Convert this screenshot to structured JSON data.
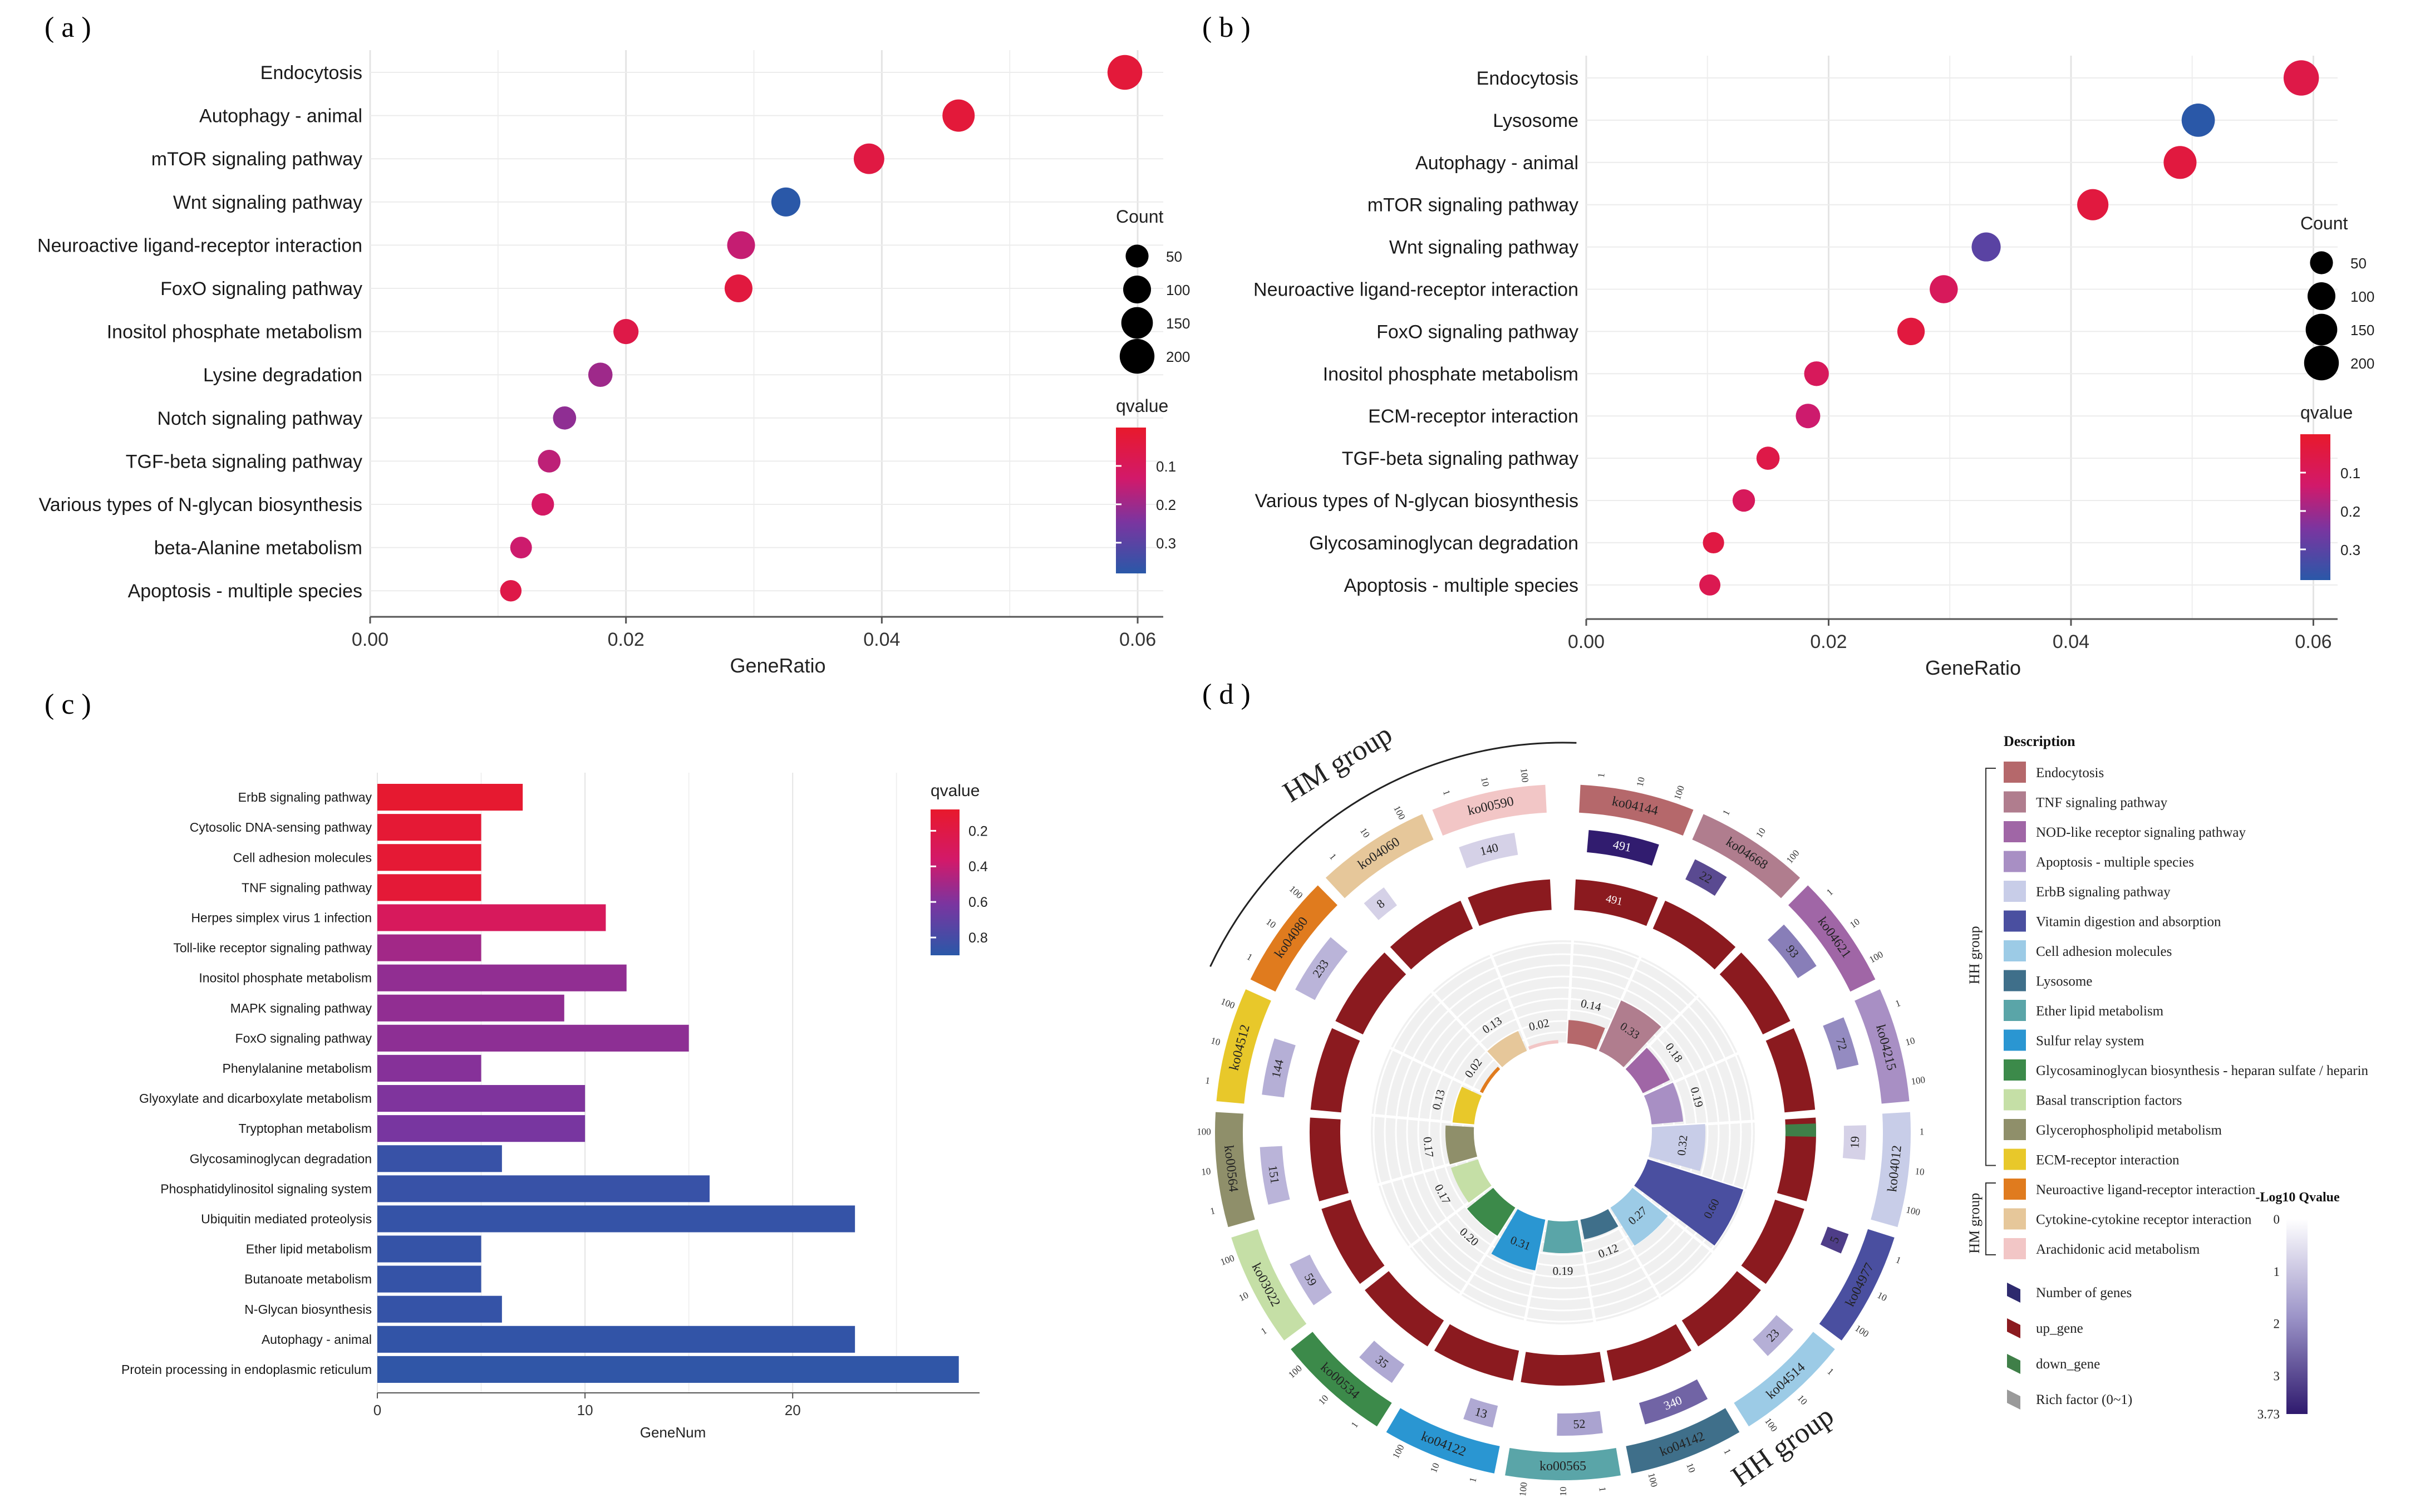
{
  "panels": {
    "a_label": "( a )",
    "b_label": "( b )",
    "c_label": "( c )",
    "d_label": "( d )"
  },
  "colors": {
    "red": "#e8192c",
    "blue": "#2a58a8",
    "dark_red": "#8b1a1f",
    "grid": "#ebebeb"
  },
  "chart_data": [
    {
      "id": "a",
      "type": "scatter",
      "title": "",
      "xlabel": "GeneRatio",
      "ylabel": "",
      "xlim": [
        0.0,
        0.062
      ],
      "xticks": [
        "0.00",
        "0.02",
        "0.04",
        "0.06"
      ],
      "xtick_values": [
        0.0,
        0.02,
        0.04,
        0.06
      ],
      "legend_size_title": "Count",
      "legend_size_labels": [
        "50",
        "100",
        "150",
        "200"
      ],
      "legend_size_values": [
        50,
        100,
        150,
        200
      ],
      "legend_color_title": "qvalue",
      "legend_color_labels": [
        "0.1",
        "0.2",
        "0.3"
      ],
      "legend_color_values": [
        0.1,
        0.2,
        0.3
      ],
      "color_range": [
        0.0,
        0.38
      ],
      "points": [
        {
          "term": "Endocytosis",
          "x": 0.059,
          "q": 0.03,
          "count": 200
        },
        {
          "term": "Autophagy - animal",
          "x": 0.046,
          "q": 0.03,
          "count": 160
        },
        {
          "term": "mTOR signaling pathway",
          "x": 0.039,
          "q": 0.05,
          "count": 135
        },
        {
          "term": "Wnt signaling pathway",
          "x": 0.0325,
          "q": 0.38,
          "count": 115
        },
        {
          "term": "Neuroactive ligand-receptor interaction",
          "x": 0.029,
          "q": 0.15,
          "count": 100
        },
        {
          "term": "FoxO signaling pathway",
          "x": 0.0288,
          "q": 0.04,
          "count": 100
        },
        {
          "term": "Inositol phosphate metabolism",
          "x": 0.02,
          "q": 0.06,
          "count": 70
        },
        {
          "term": "Lysine degradation",
          "x": 0.018,
          "q": 0.2,
          "count": 62
        },
        {
          "term": "Notch signaling pathway",
          "x": 0.0152,
          "q": 0.22,
          "count": 52
        },
        {
          "term": "TGF-beta signaling pathway",
          "x": 0.014,
          "q": 0.16,
          "count": 48
        },
        {
          "term": "Various types of N-glycan biosynthesis",
          "x": 0.0135,
          "q": 0.12,
          "count": 46
        },
        {
          "term": "beta-Alanine metabolism",
          "x": 0.0118,
          "q": 0.14,
          "count": 40
        },
        {
          "term": "Apoptosis - multiple species",
          "x": 0.011,
          "q": 0.06,
          "count": 38
        }
      ]
    },
    {
      "id": "b",
      "type": "scatter",
      "title": "",
      "xlabel": "GeneRatio",
      "ylabel": "",
      "xlim": [
        0.0,
        0.062
      ],
      "xticks": [
        "0.00",
        "0.02",
        "0.04",
        "0.06"
      ],
      "xtick_values": [
        0.0,
        0.02,
        0.04,
        0.06
      ],
      "legend_size_title": "Count",
      "legend_size_labels": [
        "50",
        "100",
        "150",
        "200"
      ],
      "legend_size_values": [
        50,
        100,
        150,
        200
      ],
      "legend_color_title": "qvalue",
      "legend_color_labels": [
        "0.1",
        "0.2",
        "0.3"
      ],
      "legend_color_values": [
        0.1,
        0.2,
        0.3
      ],
      "color_range": [
        0.0,
        0.38
      ],
      "points": [
        {
          "term": "Endocytosis",
          "x": 0.059,
          "q": 0.06,
          "count": 210
        },
        {
          "term": "Lysosome",
          "x": 0.0505,
          "q": 0.38,
          "count": 175
        },
        {
          "term": "Autophagy - animal",
          "x": 0.049,
          "q": 0.04,
          "count": 170
        },
        {
          "term": "mTOR signaling pathway",
          "x": 0.0418,
          "q": 0.04,
          "count": 145
        },
        {
          "term": "Wnt signaling pathway",
          "x": 0.033,
          "q": 0.3,
          "count": 115
        },
        {
          "term": "Neuroactive ligand-receptor interaction",
          "x": 0.0295,
          "q": 0.1,
          "count": 103
        },
        {
          "term": "FoxO signaling pathway",
          "x": 0.0268,
          "q": 0.04,
          "count": 95
        },
        {
          "term": "Inositol phosphate metabolism",
          "x": 0.019,
          "q": 0.1,
          "count": 66
        },
        {
          "term": "ECM-receptor interaction",
          "x": 0.0183,
          "q": 0.14,
          "count": 64
        },
        {
          "term": "TGF-beta signaling pathway",
          "x": 0.015,
          "q": 0.06,
          "count": 52
        },
        {
          "term": "Various types of N-glycan biosynthesis",
          "x": 0.013,
          "q": 0.1,
          "count": 46
        },
        {
          "term": "Glycosaminoglycan degradation",
          "x": 0.0105,
          "q": 0.05,
          "count": 37
        },
        {
          "term": "Apoptosis - multiple species",
          "x": 0.0102,
          "q": 0.08,
          "count": 36
        }
      ]
    },
    {
      "id": "c",
      "type": "bar",
      "orientation": "horizontal",
      "title": "",
      "xlabel": "GeneNum",
      "ylabel": "",
      "xlim": [
        0,
        29
      ],
      "xticks": [
        "0",
        "10",
        "20"
      ],
      "xtick_values": [
        0,
        10,
        20
      ],
      "legend_color_title": "qvalue",
      "legend_color_labels": [
        "0.2",
        "0.4",
        "0.6",
        "0.8"
      ],
      "legend_color_values": [
        0.2,
        0.4,
        0.6,
        0.8
      ],
      "color_range": [
        0.08,
        0.9
      ],
      "categories": [
        "ErbB signaling pathway",
        "Cytosolic DNA-sensing pathway",
        "Cell adhesion molecules",
        "TNF signaling pathway",
        "Herpes simplex virus 1 infection",
        "Toll-like receptor signaling pathway",
        "Inositol phosphate metabolism",
        "MAPK signaling pathway",
        "FoxO signaling pathway",
        "Phenylalanine metabolism",
        "Glyoxylate and dicarboxylate metabolism",
        "Tryptophan metabolism",
        "Glycosaminoglycan degradation",
        "Phosphatidylinositol signaling system",
        "Ubiquitin mediated proteolysis",
        "Ether lipid metabolism",
        "Butanoate metabolism",
        "N-Glycan biosynthesis",
        "Autophagy - animal",
        "Protein processing in endoplasmic reticulum"
      ],
      "values": [
        7,
        5,
        5,
        5,
        11,
        5,
        12,
        9,
        15,
        5,
        10,
        10,
        6,
        16,
        23,
        5,
        5,
        6,
        23,
        28
      ],
      "qvalues": [
        0.1,
        0.12,
        0.12,
        0.13,
        0.3,
        0.5,
        0.55,
        0.55,
        0.56,
        0.58,
        0.6,
        0.62,
        0.85,
        0.85,
        0.86,
        0.86,
        0.86,
        0.86,
        0.87,
        0.88
      ]
    },
    {
      "id": "d",
      "type": "circos",
      "title": "",
      "group_labels": {
        "hm": "HM group",
        "hh": "HH group"
      },
      "legend_title": "Description",
      "legend_group_hh": "HH group",
      "legend_group_hm": "HM group",
      "scale_title": "-Log10 Qvalue",
      "scale_labels": [
        "0",
        "1",
        "2",
        "3",
        "3.73"
      ],
      "shape_legend": [
        "Number of genes",
        "up_gene",
        "down_gene",
        "Rich factor (0~1)"
      ],
      "shape_colors": [
        "#2e2a6e",
        "#8b1a1f",
        "#3f7f48",
        "#9a9a9a"
      ],
      "outer_ticks": [
        "1",
        "10",
        "100"
      ],
      "sectors": [
        {
          "id": "ko04144",
          "desc": "Endocytosis",
          "color": "#b5686b",
          "genes": "491",
          "geneval": 491,
          "up": "491",
          "down": "",
          "rich": "0.14",
          "richval": 0.14,
          "qv": 3.7
        },
        {
          "id": "ko04668",
          "desc": "TNF signaling pathway",
          "color": "#b07d8e",
          "genes": "22",
          "geneval": 22,
          "up": "",
          "down": "",
          "rich": "0.33",
          "richval": 0.33,
          "qv": 3.0
        },
        {
          "id": "ko04621",
          "desc": "NOD-like receptor signaling pathway",
          "color": "#a066a6",
          "genes": "93",
          "geneval": 93,
          "up": "",
          "down": "",
          "rich": "0.18",
          "richval": 0.18,
          "qv": 2.2
        },
        {
          "id": "ko04215",
          "desc": "Apoptosis - multiple species",
          "color": "#a88fc4",
          "genes": "72",
          "geneval": 72,
          "up": "",
          "down": "",
          "rich": "0.19",
          "richval": 0.19,
          "qv": 2.0
        },
        {
          "id": "ko04012",
          "desc": "ErbB signaling pathway",
          "color": "#c8cde8",
          "genes": "19",
          "geneval": 19,
          "up": "",
          "down": "",
          "rich": "0.32",
          "richval": 0.32,
          "qv": 0.8
        },
        {
          "id": "ko04977",
          "desc": "Vitamin digestion and absorption",
          "color": "#4a4fa0",
          "genes": "5",
          "geneval": 5,
          "up": "",
          "down": "",
          "rich": "0.60",
          "richval": 0.6,
          "qv": 3.2
        },
        {
          "id": "ko04514",
          "desc": "Cell adhesion molecules",
          "color": "#9ccbe6",
          "genes": "23",
          "geneval": 23,
          "up": "",
          "down": "",
          "rich": "0.27",
          "richval": 0.27,
          "qv": 1.4
        },
        {
          "id": "ko04142",
          "desc": "Lysosome",
          "color": "#3f6f8a",
          "genes": "340",
          "geneval": 340,
          "up": "",
          "down": "",
          "rich": "0.12",
          "richval": 0.12,
          "qv": 2.6
        },
        {
          "id": "ko00565",
          "desc": "Ether lipid metabolism",
          "color": "#5aa5a8",
          "genes": "52",
          "geneval": 52,
          "up": "",
          "down": "",
          "rich": "0.19",
          "richval": 0.19,
          "qv": 1.6
        },
        {
          "id": "ko04122",
          "desc": "Sulfur relay system",
          "color": "#2a96d2",
          "genes": "13",
          "geneval": 13,
          "up": "",
          "down": "",
          "rich": "0.31",
          "richval": 0.31,
          "qv": 1.5
        },
        {
          "id": "ko00534",
          "desc": "Glycosaminoglycan biosynthesis - heparan sulfate / heparin",
          "color": "#3c8a4a",
          "genes": "35",
          "geneval": 35,
          "up": "",
          "down": "",
          "rich": "0.20",
          "richval": 0.2,
          "qv": 1.5
        },
        {
          "id": "ko03022",
          "desc": "Basal transcription factors",
          "color": "#c5dfa6",
          "genes": "59",
          "geneval": 59,
          "up": "",
          "down": "",
          "rich": "0.17",
          "richval": 0.17,
          "qv": 1.3
        },
        {
          "id": "ko00564",
          "desc": "Glycerophospholipid metabolism",
          "color": "#8f8f6a",
          "genes": "151",
          "geneval": 151,
          "up": "",
          "down": "",
          "rich": "0.17",
          "richval": 0.17,
          "qv": 1.3
        },
        {
          "id": "ko04512",
          "desc": "ECM-receptor interaction",
          "color": "#e8c82a",
          "genes": "144",
          "geneval": 144,
          "up": "",
          "down": "",
          "rich": "0.13",
          "richval": 0.13,
          "qv": 1.4
        },
        {
          "id": "ko04080",
          "desc": "Neuroactive ligand-receptor interaction",
          "color": "#e07b1e",
          "genes": "233",
          "geneval": 233,
          "up": "",
          "down": "",
          "rich": "0.02",
          "richval": 0.02,
          "qv": 1.3
        },
        {
          "id": "ko04060",
          "desc": "Cytokine-cytokine receptor interaction",
          "color": "#e6c79a",
          "genes": "8",
          "geneval": 8,
          "up": "",
          "down": "",
          "rich": "0.13",
          "richval": 0.13,
          "qv": 0.8
        },
        {
          "id": "ko00590",
          "desc": "Arachidonic acid metabolism",
          "color": "#f2c6c6",
          "genes": "140",
          "geneval": 140,
          "up": "",
          "down": "",
          "rich": "0.02",
          "richval": 0.02,
          "qv": 0.8
        }
      ]
    }
  ]
}
